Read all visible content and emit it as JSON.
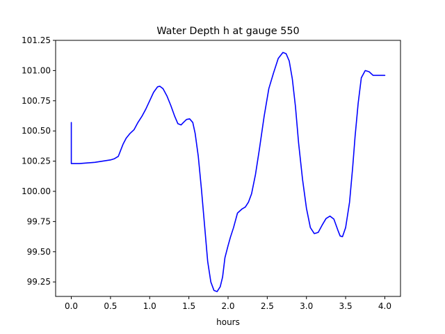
{
  "chart_data": {
    "type": "line",
    "title": "Water Depth h at gauge 550",
    "xlabel": "hours",
    "ylabel": "",
    "xlim": [
      -0.2,
      4.2
    ],
    "ylim": [
      99.13,
      101.25
    ],
    "xticks": [
      0.0,
      0.5,
      1.0,
      1.5,
      2.0,
      2.5,
      3.0,
      3.5,
      4.0
    ],
    "xtick_labels": [
      "0.0",
      "0.5",
      "1.0",
      "1.5",
      "2.0",
      "2.5",
      "3.0",
      "3.5",
      "4.0"
    ],
    "yticks": [
      99.25,
      99.5,
      99.75,
      100.0,
      100.25,
      100.5,
      100.75,
      101.0,
      101.25
    ],
    "ytick_labels": [
      "99.25",
      "99.50",
      "99.75",
      "100.00",
      "100.25",
      "100.50",
      "100.75",
      "101.00",
      "101.25"
    ],
    "grid": false,
    "series": [
      {
        "color": "#0000ff",
        "x": [
          0.0,
          0.0,
          0.01,
          0.1,
          0.2,
          0.3,
          0.4,
          0.5,
          0.55,
          0.6,
          0.63,
          0.66,
          0.7,
          0.75,
          0.8,
          0.85,
          0.9,
          0.95,
          1.0,
          1.05,
          1.1,
          1.13,
          1.17,
          1.22,
          1.27,
          1.32,
          1.36,
          1.4,
          1.43,
          1.47,
          1.51,
          1.55,
          1.58,
          1.62,
          1.66,
          1.7,
          1.74,
          1.78,
          1.82,
          1.86,
          1.9,
          1.93,
          1.96,
          2.0,
          2.03,
          2.07,
          2.12,
          2.18,
          2.22,
          2.26,
          2.3,
          2.35,
          2.4,
          2.46,
          2.52,
          2.58,
          2.64,
          2.7,
          2.74,
          2.78,
          2.82,
          2.86,
          2.9,
          2.95,
          3.0,
          3.05,
          3.1,
          3.15,
          3.2,
          3.25,
          3.3,
          3.35,
          3.4,
          3.43,
          3.46,
          3.5,
          3.55,
          3.59,
          3.62,
          3.66,
          3.7,
          3.75,
          3.8,
          3.85,
          3.9,
          3.93,
          3.96,
          3.99,
          4.0
        ],
        "y": [
          100.57,
          100.23,
          100.23,
          100.23,
          100.235,
          100.24,
          100.25,
          100.26,
          100.27,
          100.29,
          100.34,
          100.39,
          100.44,
          100.48,
          100.51,
          100.57,
          100.62,
          100.68,
          100.75,
          100.82,
          100.865,
          100.87,
          100.85,
          100.79,
          100.71,
          100.62,
          100.56,
          100.55,
          100.57,
          100.595,
          100.6,
          100.57,
          100.48,
          100.29,
          100.02,
          99.72,
          99.42,
          99.25,
          99.18,
          99.17,
          99.21,
          99.29,
          99.45,
          99.55,
          99.62,
          99.7,
          99.82,
          99.855,
          99.87,
          99.91,
          99.98,
          100.14,
          100.35,
          100.62,
          100.85,
          100.98,
          101.1,
          101.15,
          101.14,
          101.08,
          100.93,
          100.7,
          100.4,
          100.1,
          99.86,
          99.7,
          99.65,
          99.66,
          99.72,
          99.775,
          99.795,
          99.77,
          99.68,
          99.63,
          99.625,
          99.7,
          99.91,
          100.2,
          100.45,
          100.73,
          100.94,
          101.0,
          100.99,
          100.96,
          100.96,
          100.96,
          100.96,
          100.96,
          100.96
        ]
      }
    ]
  }
}
